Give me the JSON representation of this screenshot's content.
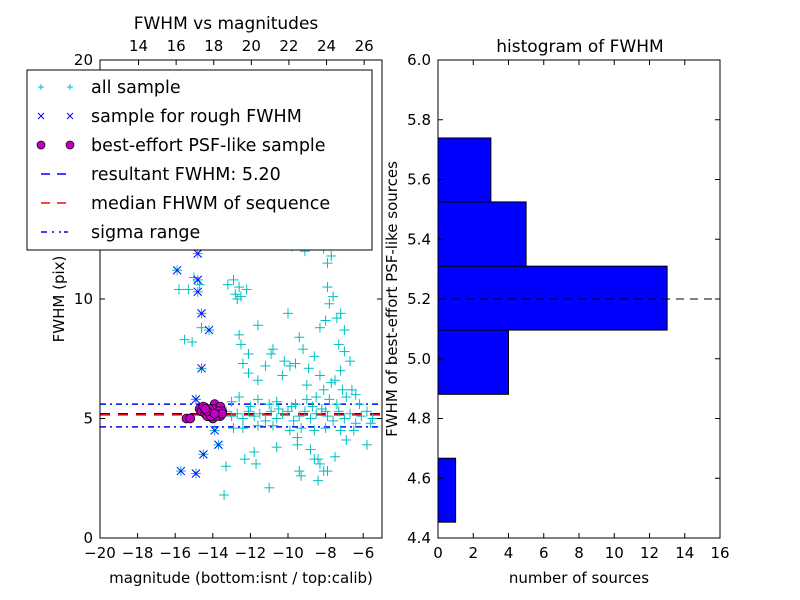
{
  "chart_data": [
    {
      "type": "scatter",
      "title": "FWHM vs magnitudes",
      "xlabel": "magnitude (bottom:isnt / top:calib)",
      "ylabel": "FWHM (pix)",
      "xlim": [
        -20,
        -5
      ],
      "ylim": [
        0,
        20
      ],
      "xticks": [
        -20,
        -18,
        -16,
        -14,
        -12,
        -10,
        -8,
        -6
      ],
      "xtick_labels": [
        "−20",
        "−18",
        "−16",
        "−14",
        "−12",
        "−10",
        "−8",
        "−6"
      ],
      "yticks": [
        0,
        5,
        10,
        20
      ],
      "ytick_labels": [
        "0",
        "5",
        "10",
        "20"
      ],
      "top_axis": {
        "label": "calib",
        "offset": 31.95,
        "ticks": [
          14,
          16,
          18,
          20,
          22,
          24,
          26
        ],
        "tick_labels": [
          "14",
          "16",
          "18",
          "20",
          "22",
          "24",
          "26"
        ]
      },
      "grid": false,
      "legend_position": "upper-left",
      "legend": [
        {
          "label": "all sample",
          "marker": "plus",
          "color": "#00BFBF"
        },
        {
          "label": "sample for rough FWHM",
          "marker": "x",
          "color": "#0000FF"
        },
        {
          "label": "best-effort PSF-like sample",
          "marker": "circle",
          "color": "#BF00BF"
        },
        {
          "label": "resultant FWHM: 5.20",
          "marker": "dashed-line",
          "color": "#0000FF"
        },
        {
          "label": "median FHWM of sequence",
          "marker": "dashed-line",
          "color": "#FF0000"
        },
        {
          "label": "sigma range",
          "marker": "dashdot-line",
          "color": "#0000FF"
        }
      ],
      "hlines": [
        {
          "name": "resultant FWHM",
          "y": 5.2,
          "style": "dashed",
          "color": "#0000FF"
        },
        {
          "name": "median FHWM of sequence",
          "y": 5.15,
          "style": "dashed",
          "color": "#FF0000"
        },
        {
          "name": "sigma upper",
          "y": 5.6,
          "style": "dashdot",
          "color": "#0000FF"
        },
        {
          "name": "sigma lower",
          "y": 4.65,
          "style": "dashdot",
          "color": "#0000FF"
        }
      ],
      "series": [
        {
          "name": "all sample",
          "marker": "plus",
          "color": "#00BFBF",
          "points": [
            [
              -15.8,
              10.4
            ],
            [
              -15.0,
              10.9
            ],
            [
              -15.3,
              10.4
            ],
            [
              -14.7,
              10.6
            ],
            [
              -15.5,
              8.3
            ],
            [
              -15.1,
              8.2
            ],
            [
              -14.6,
              8.8
            ],
            [
              -14.9,
              5.8
            ],
            [
              -13.9,
              12.4
            ],
            [
              -13.2,
              10.6
            ],
            [
              -12.9,
              10.8
            ],
            [
              -12.8,
              10.2
            ],
            [
              -12.6,
              10.5
            ],
            [
              -12.2,
              10.4
            ],
            [
              -12.7,
              10.0
            ],
            [
              -12.5,
              10.1
            ],
            [
              -11.3,
              12.6
            ],
            [
              -11.2,
              12.4
            ],
            [
              -10.4,
              12.4
            ],
            [
              -9.8,
              12.2
            ],
            [
              -9.1,
              12.0
            ],
            [
              -8.1,
              12.1
            ],
            [
              -7.7,
              11.8
            ],
            [
              -7.9,
              11.5
            ],
            [
              -10.0,
              9.4
            ],
            [
              -11.6,
              8.9
            ],
            [
              -12.6,
              8.5
            ],
            [
              -12.5,
              8.1
            ],
            [
              -12.1,
              7.7
            ],
            [
              -12.4,
              7.3
            ],
            [
              -12.1,
              6.9
            ],
            [
              -11.2,
              7.2
            ],
            [
              -10.8,
              7.9
            ],
            [
              -10.9,
              7.7
            ],
            [
              -10.2,
              7.4
            ],
            [
              -9.9,
              7.2
            ],
            [
              -9.6,
              7.3
            ],
            [
              -9.4,
              8.4
            ],
            [
              -9.2,
              7.9
            ],
            [
              -8.9,
              7.1
            ],
            [
              -8.6,
              7.6
            ],
            [
              -8.3,
              8.8
            ],
            [
              -8.0,
              9.1
            ],
            [
              -7.8,
              9.8
            ],
            [
              -7.6,
              10.1
            ],
            [
              -7.9,
              10.5
            ],
            [
              -7.4,
              9.2
            ],
            [
              -7.2,
              9.4
            ],
            [
              -7.0,
              8.7
            ],
            [
              -7.3,
              8.1
            ],
            [
              -7.0,
              7.8
            ],
            [
              -6.7,
              7.4
            ],
            [
              -7.2,
              7.0
            ],
            [
              -7.5,
              6.6
            ],
            [
              -6.6,
              6.2
            ],
            [
              -7.1,
              6.2
            ],
            [
              -7.7,
              6.5
            ],
            [
              -8.1,
              6.2
            ],
            [
              -6.9,
              5.9
            ],
            [
              -6.4,
              6.0
            ],
            [
              -6.2,
              5.6
            ],
            [
              -8.5,
              5.9
            ],
            [
              -9.0,
              5.8
            ],
            [
              -9.6,
              5.6
            ],
            [
              -10.6,
              5.7
            ],
            [
              -11.6,
              5.8
            ],
            [
              -12.6,
              5.9
            ],
            [
              -13.0,
              5.7
            ],
            [
              -13.3,
              5.3
            ],
            [
              -13.0,
              5.1
            ],
            [
              -12.7,
              5.2
            ],
            [
              -12.4,
              5.0
            ],
            [
              -12.1,
              5.3
            ],
            [
              -11.8,
              5.1
            ],
            [
              -11.5,
              5.2
            ],
            [
              -11.2,
              4.9
            ],
            [
              -10.9,
              5.3
            ],
            [
              -10.6,
              5.0
            ],
            [
              -10.3,
              5.2
            ],
            [
              -10.0,
              5.3
            ],
            [
              -9.7,
              4.9
            ],
            [
              -9.4,
              5.1
            ],
            [
              -9.1,
              5.3
            ],
            [
              -8.8,
              5.0
            ],
            [
              -8.5,
              5.2
            ],
            [
              -8.2,
              5.4
            ],
            [
              -7.9,
              5.1
            ],
            [
              -7.6,
              4.9
            ],
            [
              -7.3,
              5.3
            ],
            [
              -7.0,
              5.0
            ],
            [
              -6.7,
              5.2
            ],
            [
              -6.4,
              4.8
            ],
            [
              -6.1,
              5.1
            ],
            [
              -5.8,
              5.3
            ],
            [
              -5.5,
              5.0
            ],
            [
              -12.9,
              4.6
            ],
            [
              -12.4,
              4.6
            ],
            [
              -11.6,
              4.7
            ],
            [
              -10.8,
              4.7
            ],
            [
              -9.9,
              4.5
            ],
            [
              -9.3,
              4.6
            ],
            [
              -8.6,
              4.5
            ],
            [
              -8.0,
              4.6
            ],
            [
              -7.2,
              4.5
            ],
            [
              -6.5,
              4.5
            ],
            [
              -5.6,
              4.8
            ],
            [
              -9.5,
              4.2
            ],
            [
              -9.5,
              3.9
            ],
            [
              -8.8,
              3.7
            ],
            [
              -8.6,
              3.3
            ],
            [
              -8.4,
              3.3
            ],
            [
              -8.3,
              3.1
            ],
            [
              -8.1,
              2.8
            ],
            [
              -7.9,
              2.8
            ],
            [
              -8.4,
              2.4
            ],
            [
              -9.4,
              2.8
            ],
            [
              -9.3,
              2.6
            ],
            [
              -10.6,
              3.8
            ],
            [
              -11.8,
              3.6
            ],
            [
              -11.7,
              3.1
            ],
            [
              -12.3,
              3.3
            ],
            [
              -13.3,
              3.0
            ],
            [
              -13.4,
              1.8
            ],
            [
              -11.0,
              2.1
            ],
            [
              -5.8,
              3.9
            ],
            [
              -7.5,
              3.4
            ],
            [
              -6.9,
              4.1
            ],
            [
              -9.0,
              6.4
            ],
            [
              -8.3,
              6.8
            ],
            [
              -10.3,
              6.8
            ],
            [
              -11.6,
              6.6
            ],
            [
              -7.4,
              5.6
            ],
            [
              -7.8,
              5.8
            ],
            [
              -8.0,
              5.3
            ],
            [
              -8.7,
              5.5
            ],
            [
              -9.8,
              5.5
            ],
            [
              -10.5,
              5.4
            ],
            [
              -12.0,
              5.5
            ],
            [
              -11.0,
              5.6
            ]
          ]
        },
        {
          "name": "sample for rough FWHM",
          "marker": "x",
          "color": "#0000FF",
          "points": [
            [
              -15.9,
              11.2
            ],
            [
              -14.8,
              11.9
            ],
            [
              -14.8,
              10.8
            ],
            [
              -14.8,
              10.3
            ],
            [
              -14.6,
              9.4
            ],
            [
              -14.2,
              8.7
            ],
            [
              -14.6,
              7.1
            ],
            [
              -14.9,
              5.8
            ],
            [
              -13.9,
              4.5
            ],
            [
              -13.7,
              3.9
            ],
            [
              -14.5,
              3.5
            ],
            [
              -15.7,
              2.8
            ],
            [
              -14.9,
              2.7
            ]
          ]
        },
        {
          "name": "best-effort PSF-like sample",
          "marker": "circle",
          "color": "#BF00BF",
          "points": [
            [
              -15.4,
              5.0
            ],
            [
              -15.2,
              5.0
            ],
            [
              -14.7,
              5.4
            ],
            [
              -14.6,
              5.3
            ],
            [
              -14.4,
              5.2
            ],
            [
              -14.3,
              5.1
            ],
            [
              -14.2,
              5.3
            ],
            [
              -14.1,
              5.2
            ],
            [
              -14.0,
              5.0
            ],
            [
              -13.9,
              5.6
            ],
            [
              -13.9,
              5.3
            ],
            [
              -13.8,
              5.4
            ],
            [
              -13.7,
              5.2
            ],
            [
              -13.6,
              5.5
            ],
            [
              -13.6,
              5.1
            ],
            [
              -13.5,
              5.3
            ],
            [
              -14.5,
              5.5
            ],
            [
              -14.0,
              5.4
            ],
            [
              -13.8,
              5.1
            ],
            [
              -14.2,
              5.4
            ],
            [
              -13.7,
              5.3
            ],
            [
              -14.1,
              5.1
            ],
            [
              -13.5,
              5.2
            ],
            [
              -14.3,
              5.3
            ],
            [
              -13.9,
              5.2
            ],
            [
              -14.4,
              5.4
            ]
          ]
        }
      ]
    },
    {
      "type": "bar",
      "orientation": "horizontal",
      "title": "histogram of FWHM",
      "xlabel": "number of sources",
      "ylabel": "FWHM of best-effort PSF-like sources",
      "xlim": [
        0,
        16
      ],
      "ylim": [
        4.4,
        6.0
      ],
      "xticks": [
        0,
        2,
        4,
        6,
        8,
        10,
        12,
        14,
        16
      ],
      "xtick_labels": [
        "0",
        "2",
        "4",
        "6",
        "8",
        "10",
        "12",
        "14",
        "16"
      ],
      "yticks": [
        4.4,
        4.6,
        4.8,
        5.0,
        5.2,
        5.4,
        5.6,
        5.8,
        6.0
      ],
      "ytick_labels": [
        "4.4",
        "4.6",
        "4.8",
        "5.0",
        "5.2",
        "5.4",
        "5.6",
        "5.8",
        "6.0"
      ],
      "grid": false,
      "bar_color": "#0000FF",
      "bins": [
        {
          "low": 4.453,
          "high": 4.667,
          "count": 1
        },
        {
          "low": 4.667,
          "high": 4.881,
          "count": 0
        },
        {
          "low": 4.881,
          "high": 5.096,
          "count": 4
        },
        {
          "low": 5.096,
          "high": 5.31,
          "count": 13
        },
        {
          "low": 5.31,
          "high": 5.525,
          "count": 5
        },
        {
          "low": 5.525,
          "high": 5.739,
          "count": 3
        }
      ],
      "hline": {
        "y": 5.2,
        "style": "dashed",
        "color": "#000000"
      }
    }
  ]
}
